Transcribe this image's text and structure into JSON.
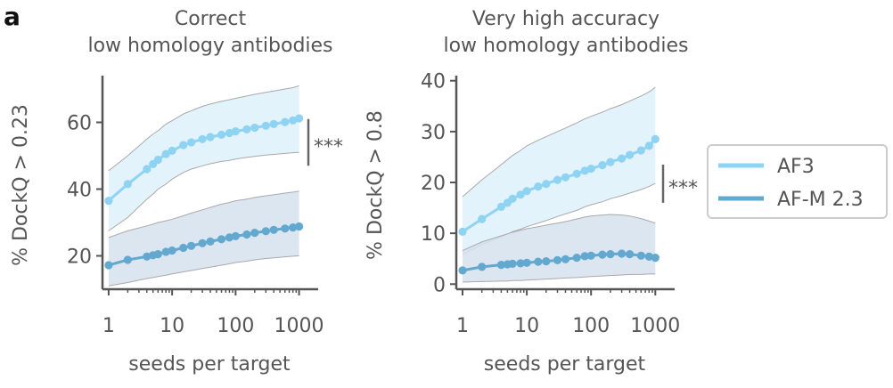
{
  "panel_letter": "a",
  "colors": {
    "af3": "#8fd3f3",
    "afm": "#63a8cf",
    "af3_band": "#e3f3fc",
    "afm_band": "#d6e2ee",
    "band_edge": "#a9a9a9",
    "text": "#555555"
  },
  "legend": {
    "items": [
      "AF3",
      "AF-M 2.3"
    ]
  },
  "chart_data": [
    {
      "type": "line",
      "title_lines": [
        "Correct",
        "low homology antibodies"
      ],
      "xlabel": "seeds per target",
      "ylabel": "% DockQ > 0.23",
      "xscale": "log",
      "xlim": [
        0.8,
        2000
      ],
      "ylim": [
        10,
        74
      ],
      "xticks": [
        1,
        10,
        100,
        1000
      ],
      "xtick_labels": [
        "1",
        "10",
        "100",
        "1000"
      ],
      "yticks": [
        20,
        40,
        60
      ],
      "ytick_labels": [
        "20",
        "40",
        "60"
      ],
      "significance": {
        "label": "***",
        "y_range": [
          47,
          61
        ]
      },
      "series": [
        {
          "name": "AF3",
          "x": [
            1,
            2,
            4,
            5,
            6,
            8,
            10,
            15,
            20,
            30,
            40,
            60,
            80,
            100,
            150,
            200,
            300,
            400,
            600,
            800,
            1000
          ],
          "y": [
            36.5,
            41.5,
            46,
            47.5,
            48.8,
            50.5,
            51.5,
            53.2,
            54.0,
            55.0,
            55.6,
            56.3,
            56.8,
            57.3,
            57.9,
            58.4,
            59.0,
            59.5,
            60.1,
            60.6,
            61.2
          ],
          "band_upper": [
            45.5,
            50,
            55,
            56.5,
            57.5,
            59.5,
            60.5,
            62.5,
            63.5,
            64.8,
            65.5,
            66.3,
            66.8,
            67.2,
            67.9,
            68.4,
            69.0,
            69.4,
            70.0,
            70.4,
            71.0
          ],
          "band_lower": [
            27.5,
            31.5,
            37,
            38.5,
            40,
            41.5,
            43,
            45,
            46,
            47,
            47.6,
            48.3,
            48.6,
            49,
            49.5,
            49.8,
            50.2,
            50.4,
            50.7,
            50.9,
            51.0
          ]
        },
        {
          "name": "AF-M 2.3",
          "x": [
            1,
            2,
            4,
            5,
            6,
            8,
            10,
            15,
            20,
            30,
            40,
            60,
            80,
            100,
            150,
            200,
            300,
            400,
            600,
            800,
            1000
          ],
          "y": [
            17.2,
            18.8,
            19.8,
            20.2,
            20.5,
            21.2,
            21.6,
            22.4,
            23.0,
            23.8,
            24.3,
            25.0,
            25.5,
            25.9,
            26.4,
            26.9,
            27.4,
            27.8,
            28.2,
            28.5,
            28.8
          ],
          "band_upper": [
            25.5,
            27.5,
            29,
            29.5,
            30,
            30.5,
            31,
            32,
            32.8,
            33.8,
            34.5,
            35.5,
            36,
            36.5,
            37,
            37.5,
            38,
            38.3,
            38.8,
            39.1,
            39.4
          ],
          "band_lower": [
            11,
            12,
            13.2,
            13.5,
            13.8,
            14.2,
            14.6,
            15.2,
            15.6,
            16.2,
            16.6,
            17.2,
            17.6,
            18,
            18.4,
            18.8,
            19.2,
            19.4,
            19.7,
            19.9,
            20.0
          ]
        }
      ]
    },
    {
      "type": "line",
      "title_lines": [
        "Very high accuracy",
        "low homology antibodies"
      ],
      "xlabel": "seeds per target",
      "ylabel": "% DockQ > 0.8",
      "xscale": "log",
      "xlim": [
        0.8,
        2000
      ],
      "ylim": [
        -1,
        41
      ],
      "xticks": [
        1,
        10,
        100,
        1000
      ],
      "xtick_labels": [
        "1",
        "10",
        "100",
        "1000"
      ],
      "yticks": [
        0,
        10,
        20,
        30,
        40
      ],
      "ytick_labels": [
        "0",
        "10",
        "20",
        "30",
        "40"
      ],
      "significance": {
        "label": "***",
        "y_range": [
          16,
          23.5
        ]
      },
      "series": [
        {
          "name": "AF3",
          "x": [
            1,
            2,
            4,
            5,
            6,
            8,
            10,
            15,
            20,
            30,
            40,
            60,
            80,
            100,
            150,
            200,
            300,
            400,
            600,
            800,
            1000
          ],
          "y": [
            10.3,
            12.8,
            15.2,
            16.0,
            16.8,
            17.6,
            18.3,
            19.2,
            19.7,
            20.5,
            21.0,
            21.7,
            22.3,
            22.7,
            23.4,
            24.0,
            24.7,
            25.4,
            26.3,
            27.2,
            28.5
          ],
          "band_upper": [
            17.2,
            20.5,
            23.5,
            24.5,
            25.3,
            26.3,
            27.2,
            28.3,
            29.0,
            30.0,
            30.7,
            31.7,
            32.5,
            33.0,
            33.8,
            34.5,
            35.3,
            36,
            37,
            37.8,
            38.7
          ],
          "band_lower": [
            5.8,
            7.8,
            9.3,
            9.8,
            10.3,
            10.8,
            11.3,
            12,
            12.5,
            13.3,
            13.8,
            14.5,
            15.2,
            15.6,
            16.2,
            16.8,
            17.4,
            17.9,
            18.6,
            19.2,
            19.8
          ]
        },
        {
          "name": "AF-M 2.3",
          "x": [
            1,
            2,
            4,
            5,
            6,
            8,
            10,
            15,
            20,
            30,
            40,
            60,
            80,
            100,
            150,
            200,
            300,
            400,
            600,
            800,
            1000
          ],
          "y": [
            2.7,
            3.4,
            3.8,
            3.9,
            4.0,
            4.1,
            4.2,
            4.4,
            4.5,
            4.7,
            4.9,
            5.2,
            5.5,
            5.6,
            5.8,
            5.9,
            6.0,
            5.9,
            5.6,
            5.4,
            5.2
          ],
          "band_upper": [
            6.6,
            8.3,
            9.5,
            9.9,
            10.2,
            10.6,
            10.9,
            11.3,
            11.6,
            12.0,
            12.3,
            12.8,
            13.2,
            13.4,
            13.6,
            13.7,
            13.6,
            13.4,
            12.9,
            12.4,
            12.0
          ],
          "band_lower": [
            0.4,
            0.5,
            0.6,
            0.6,
            0.7,
            0.7,
            0.8,
            0.9,
            1.0,
            1.1,
            1.2,
            1.3,
            1.4,
            1.5,
            1.6,
            1.7,
            1.8,
            1.9,
            1.9,
            2.0,
            2.0
          ]
        }
      ]
    }
  ]
}
